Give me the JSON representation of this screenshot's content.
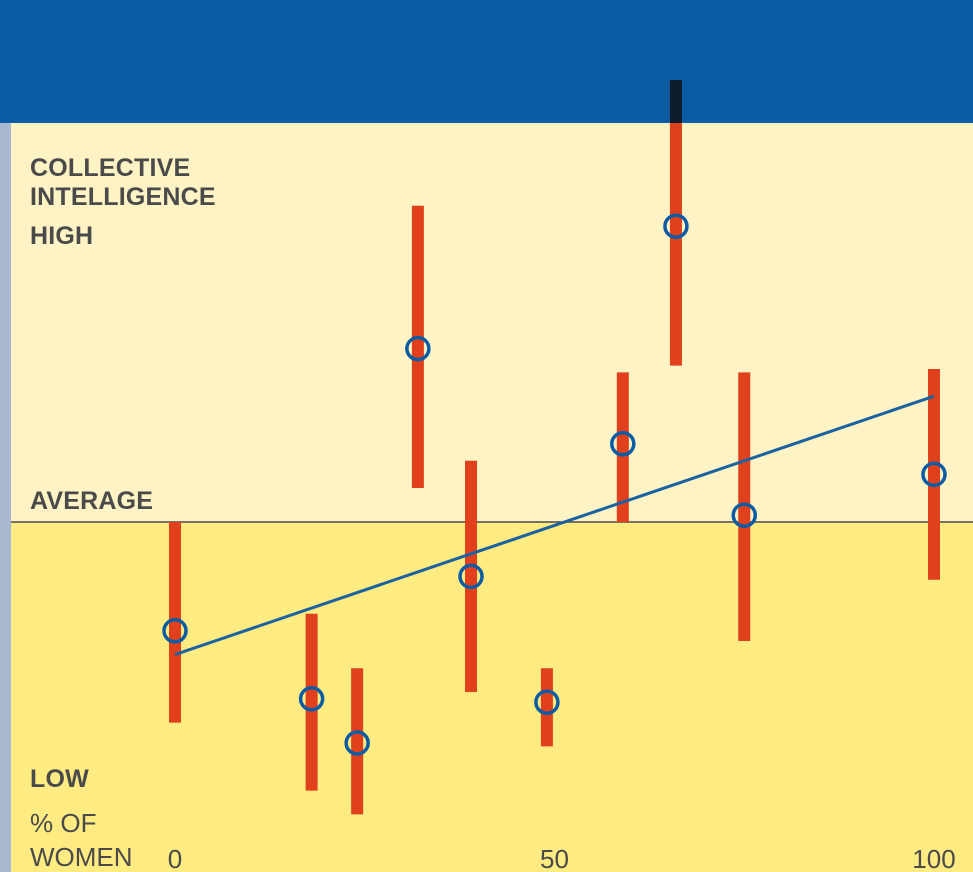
{
  "colors": {
    "header_band": "#0a5ca4",
    "upper_zone": "#fdf3c4",
    "lower_zone": "#feeb82",
    "left_strip": "#a9b8d0",
    "error_bar": "#e0401c",
    "marker": "#0a5ca4",
    "trend_line": "#1a62a0",
    "average_line": "#4a4a4a",
    "text": "#4a4a4a",
    "overflow_bar": "#0c1c2a"
  },
  "labels": {
    "y_title_line1": "COLLECTIVE",
    "y_title_line2": "INTELLIGENCE",
    "high": "HIGH",
    "average": "AVERAGE",
    "low": "LOW",
    "x_title_line1": "% OF",
    "x_title_line2": "WOMEN"
  },
  "chart_data": {
    "type": "scatter",
    "title": "",
    "xlabel": "% OF WOMEN",
    "ylabel": "COLLECTIVE INTELLIGENCE",
    "xlim": [
      0,
      100
    ],
    "ylim": [
      -1,
      1
    ],
    "y_levels": [
      "LOW",
      "AVERAGE",
      "HIGH"
    ],
    "x_ticks": [
      0,
      50,
      100
    ],
    "x_tick_labels": [
      "0",
      "50",
      "100"
    ],
    "reference_line": {
      "name": "AVERAGE",
      "y": 0
    },
    "grid": false,
    "legend": "none",
    "points": [
      {
        "x": 0,
        "y": -0.32,
        "low": -0.59,
        "high": 0
      },
      {
        "x": 18,
        "y": -0.52,
        "low": -0.79,
        "high": -0.27
      },
      {
        "x": 24,
        "y": -0.65,
        "low": -0.86,
        "high": -0.43
      },
      {
        "x": 32,
        "y": 0.51,
        "low": 0.1,
        "high": 0.93
      },
      {
        "x": 39,
        "y": -0.16,
        "low": -0.5,
        "high": 0.18
      },
      {
        "x": 49,
        "y": -0.53,
        "low": -0.66,
        "high": -0.43
      },
      {
        "x": 59,
        "y": 0.23,
        "low": 0,
        "high": 0.44
      },
      {
        "x": 66,
        "y": 0.87,
        "low": 0.46,
        "high": 1.3
      },
      {
        "x": 75,
        "y": 0.02,
        "low": -0.35,
        "high": 0.44
      },
      {
        "x": 100,
        "y": 0.14,
        "low": -0.17,
        "high": 0.45
      }
    ],
    "trend_line": {
      "x": [
        0,
        100
      ],
      "y": [
        -0.39,
        0.37
      ]
    }
  }
}
